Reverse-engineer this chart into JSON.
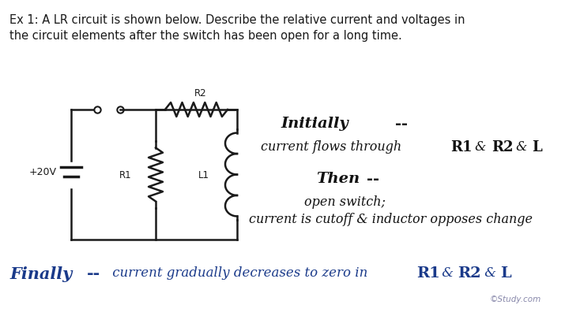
{
  "bg_color": "#ffffff",
  "header_text_line1": "Ex 1: A LR circuit is shown below. Describe the relative current and voltages in",
  "header_text_line2": "the circuit elements after the switch has been open for a long time.",
  "header_fontsize": 10.5,
  "header_color": "#1a1a1a",
  "circuit_color": "#1a1a1a",
  "annotation_color_black": "#111111",
  "annotation_color_blue": "#1a3a8a",
  "study_text": "©Study.com",
  "study_color": "#8888aa"
}
